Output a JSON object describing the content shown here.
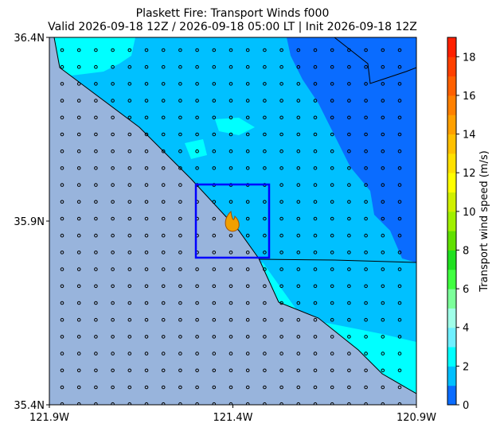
{
  "chart_data": {
    "type": "map",
    "title": "Plaskett Fire: Transport Winds f000",
    "subtitle": "Valid 2026-09-18 12Z / 2026-09-18 05:00 LT | Init 2026-09-18 12Z",
    "xlim": [
      -121.9,
      -120.9
    ],
    "ylim": [
      35.4,
      36.4
    ],
    "xticks": [
      {
        "value": -121.9,
        "label": "121.9W"
      },
      {
        "value": -121.4,
        "label": "121.4W"
      },
      {
        "value": -120.9,
        "label": "120.9W"
      }
    ],
    "yticks": [
      {
        "value": 35.4,
        "label": "35.4N"
      },
      {
        "value": 35.9,
        "label": "35.9N"
      },
      {
        "value": 36.4,
        "label": "36.4N"
      }
    ],
    "colorbar": {
      "label": "Transport wind speed (m/s)",
      "lim": [
        0,
        19
      ],
      "ticks": [
        0,
        2,
        4,
        6,
        8,
        10,
        12,
        14,
        16,
        18
      ],
      "colors": [
        "#0a6cff",
        "#00bfff",
        "#00ffff",
        "#6ff0ff",
        "#a0ffe8",
        "#7cff9a",
        "#40ff40",
        "#20e020",
        "#60e000",
        "#a0f000",
        "#d0f000",
        "#ffff00",
        "#ffe000",
        "#ffc000",
        "#ffa000",
        "#ff8000",
        "#ff6000",
        "#ff4000",
        "#ff2000"
      ]
    }
  }
}
